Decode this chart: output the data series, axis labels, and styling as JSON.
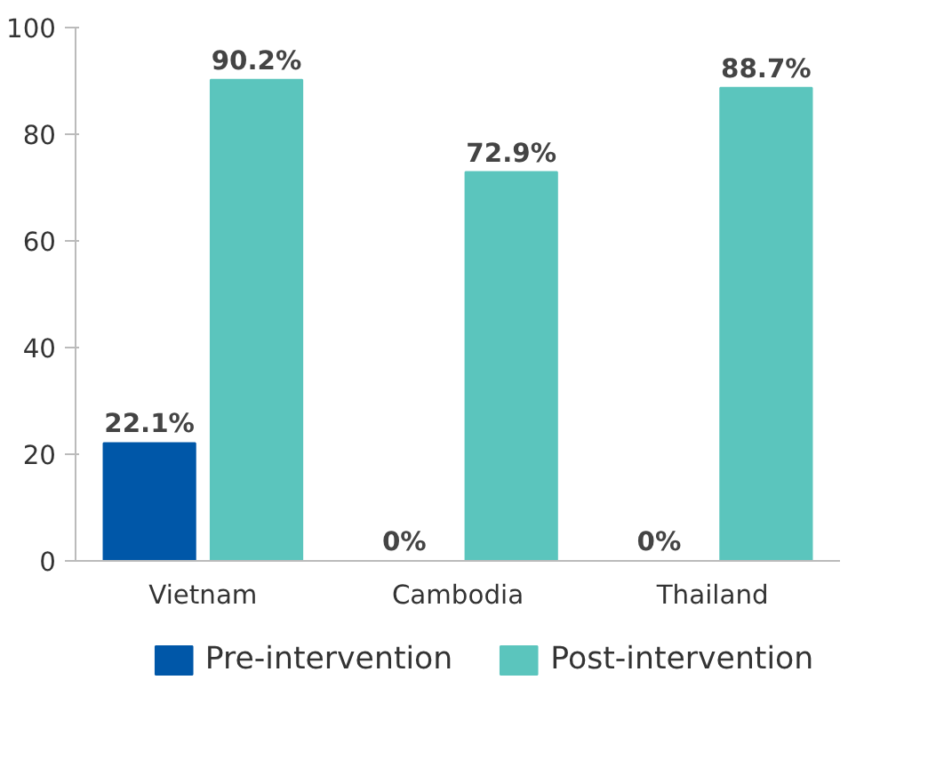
{
  "chart_data": {
    "type": "bar",
    "categories": [
      "Vietnam",
      "Cambodia",
      "Thailand"
    ],
    "series": [
      {
        "name": "Pre-intervention",
        "color": "#0057a8",
        "values": [
          22.1,
          0,
          0
        ],
        "value_labels": [
          "22.1%",
          "0%",
          "0%"
        ]
      },
      {
        "name": "Post-intervention",
        "color": "#5bc5bd",
        "values": [
          90.2,
          72.9,
          88.7
        ],
        "value_labels": [
          "90.2%",
          "72.9%",
          "88.7%"
        ]
      }
    ],
    "ylim": [
      0,
      100
    ],
    "yticks": [
      0,
      20,
      40,
      60,
      80,
      100
    ],
    "grid": false,
    "legend": "bottom"
  }
}
